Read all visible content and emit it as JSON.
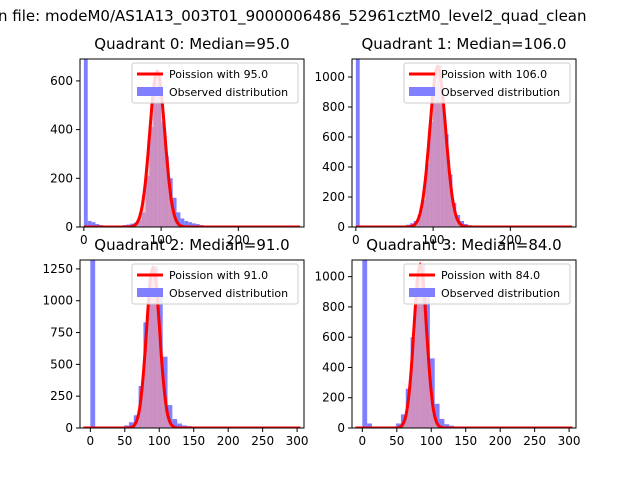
{
  "suptitle": "n file: modeM0/AS1A13_003T01_9000006486_52961cztM0_level2_quad_clean",
  "colors": {
    "hist": "#7f7fff",
    "fit": "#ff0000",
    "fit_fill": "#ff9a9a"
  },
  "chart_data": [
    {
      "type": "bar",
      "title": "Quadrant 0: Median=95.0",
      "xlim": [
        -5,
        285
      ],
      "ylim": [
        0,
        690
      ],
      "xticks": [
        0,
        100,
        200
      ],
      "yticks": [
        0,
        200,
        400,
        600
      ],
      "median": 95.0,
      "legend": [
        "Poission with 95.0",
        "Observed distribution"
      ],
      "legend_position": "top-right",
      "bars": [
        {
          "x": 0,
          "y": 690
        },
        {
          "x": 5,
          "y": 25
        },
        {
          "x": 10,
          "y": 20
        },
        {
          "x": 15,
          "y": 12
        },
        {
          "x": 20,
          "y": 8
        },
        {
          "x": 25,
          "y": 5
        },
        {
          "x": 30,
          "y": 4
        },
        {
          "x": 35,
          "y": 4
        },
        {
          "x": 40,
          "y": 5
        },
        {
          "x": 45,
          "y": 6
        },
        {
          "x": 50,
          "y": 8
        },
        {
          "x": 55,
          "y": 10
        },
        {
          "x": 60,
          "y": 14
        },
        {
          "x": 65,
          "y": 18
        },
        {
          "x": 70,
          "y": 30
        },
        {
          "x": 75,
          "y": 60
        },
        {
          "x": 80,
          "y": 210
        },
        {
          "x": 85,
          "y": 410
        },
        {
          "x": 90,
          "y": 590
        },
        {
          "x": 95,
          "y": 630
        },
        {
          "x": 100,
          "y": 430
        },
        {
          "x": 105,
          "y": 290
        },
        {
          "x": 110,
          "y": 200
        },
        {
          "x": 115,
          "y": 120
        },
        {
          "x": 120,
          "y": 60
        },
        {
          "x": 125,
          "y": 35
        },
        {
          "x": 130,
          "y": 25
        },
        {
          "x": 135,
          "y": 20
        },
        {
          "x": 140,
          "y": 15
        },
        {
          "x": 145,
          "y": 12
        },
        {
          "x": 150,
          "y": 8
        },
        {
          "x": 155,
          "y": 6
        },
        {
          "x": 160,
          "y": 4
        },
        {
          "x": 165,
          "y": 3
        },
        {
          "x": 170,
          "y": 3
        },
        {
          "x": 175,
          "y": 2
        },
        {
          "x": 180,
          "y": 2
        },
        {
          "x": 185,
          "y": 2
        },
        {
          "x": 190,
          "y": 1
        },
        {
          "x": 195,
          "y": 1
        },
        {
          "x": 200,
          "y": 1
        },
        {
          "x": 205,
          "y": 1
        }
      ],
      "fit_peak": 640
    },
    {
      "type": "bar",
      "title": "Quadrant 1: Median=106.0",
      "xlim": [
        -5,
        285
      ],
      "ylim": [
        0,
        1120
      ],
      "xticks": [
        0,
        100,
        200
      ],
      "yticks": [
        0,
        200,
        400,
        600,
        800,
        1000
      ],
      "median": 106.0,
      "legend": [
        "Poission with 106.0",
        "Observed distribution"
      ],
      "legend_position": "top-right",
      "bars": [
        {
          "x": 0,
          "y": 1120
        },
        {
          "x": 5,
          "y": 10
        },
        {
          "x": 10,
          "y": 6
        },
        {
          "x": 15,
          "y": 4
        },
        {
          "x": 20,
          "y": 3
        },
        {
          "x": 25,
          "y": 3
        },
        {
          "x": 30,
          "y": 3
        },
        {
          "x": 35,
          "y": 3
        },
        {
          "x": 40,
          "y": 4
        },
        {
          "x": 45,
          "y": 5
        },
        {
          "x": 50,
          "y": 6
        },
        {
          "x": 55,
          "y": 8
        },
        {
          "x": 60,
          "y": 10
        },
        {
          "x": 65,
          "y": 15
        },
        {
          "x": 70,
          "y": 25
        },
        {
          "x": 75,
          "y": 40
        },
        {
          "x": 80,
          "y": 80
        },
        {
          "x": 85,
          "y": 180
        },
        {
          "x": 90,
          "y": 420
        },
        {
          "x": 95,
          "y": 700
        },
        {
          "x": 100,
          "y": 940
        },
        {
          "x": 105,
          "y": 1080
        },
        {
          "x": 110,
          "y": 880
        },
        {
          "x": 115,
          "y": 620
        },
        {
          "x": 120,
          "y": 350
        },
        {
          "x": 125,
          "y": 160
        },
        {
          "x": 130,
          "y": 80
        },
        {
          "x": 135,
          "y": 40
        },
        {
          "x": 140,
          "y": 20
        },
        {
          "x": 145,
          "y": 12
        },
        {
          "x": 150,
          "y": 8
        },
        {
          "x": 155,
          "y": 6
        },
        {
          "x": 160,
          "y": 4
        },
        {
          "x": 165,
          "y": 3
        },
        {
          "x": 170,
          "y": 2
        },
        {
          "x": 175,
          "y": 2
        }
      ],
      "fit_peak": 1070
    },
    {
      "type": "bar",
      "title": "Quadrant 2: Median=91.0",
      "xlim": [
        -15,
        310
      ],
      "ylim": [
        0,
        1320
      ],
      "xticks": [
        0,
        50,
        100,
        150,
        200,
        250,
        300
      ],
      "yticks": [
        0,
        250,
        500,
        750,
        1000,
        1250
      ],
      "median": 91.0,
      "legend": [
        "Poission with 91.0",
        "Observed distribution"
      ],
      "legend_position": "top-right",
      "bars": [
        {
          "x": 0,
          "y": 1320
        },
        {
          "x": 7,
          "y": 8
        },
        {
          "x": 14,
          "y": 5
        },
        {
          "x": 21,
          "y": 4
        },
        {
          "x": 28,
          "y": 4
        },
        {
          "x": 35,
          "y": 5
        },
        {
          "x": 42,
          "y": 8
        },
        {
          "x": 49,
          "y": 20
        },
        {
          "x": 56,
          "y": 45
        },
        {
          "x": 63,
          "y": 100
        },
        {
          "x": 70,
          "y": 330
        },
        {
          "x": 77,
          "y": 830
        },
        {
          "x": 84,
          "y": 1180
        },
        {
          "x": 91,
          "y": 1270
        },
        {
          "x": 98,
          "y": 1050
        },
        {
          "x": 105,
          "y": 560
        },
        {
          "x": 112,
          "y": 180
        },
        {
          "x": 119,
          "y": 70
        },
        {
          "x": 126,
          "y": 35
        },
        {
          "x": 133,
          "y": 20
        },
        {
          "x": 140,
          "y": 15
        },
        {
          "x": 147,
          "y": 12
        },
        {
          "x": 154,
          "y": 8
        },
        {
          "x": 161,
          "y": 6
        },
        {
          "x": 168,
          "y": 4
        },
        {
          "x": 175,
          "y": 3
        },
        {
          "x": 182,
          "y": 2
        },
        {
          "x": 189,
          "y": 2
        }
      ],
      "fit_peak": 1260
    },
    {
      "type": "bar",
      "title": "Quadrant 3: Median=84.0",
      "xlim": [
        -15,
        310
      ],
      "ylim": [
        0,
        1110
      ],
      "xticks": [
        0,
        50,
        100,
        150,
        200,
        250,
        300
      ],
      "yticks": [
        0,
        200,
        400,
        600,
        800,
        1000
      ],
      "median": 84.0,
      "legend": [
        "Poission with 84.0",
        "Observed distribution"
      ],
      "legend_position": "top-right",
      "bars": [
        {
          "x": 0,
          "y": 1110
        },
        {
          "x": 7,
          "y": 30
        },
        {
          "x": 14,
          "y": 8
        },
        {
          "x": 21,
          "y": 5
        },
        {
          "x": 28,
          "y": 4
        },
        {
          "x": 35,
          "y": 5
        },
        {
          "x": 42,
          "y": 10
        },
        {
          "x": 49,
          "y": 30
        },
        {
          "x": 56,
          "y": 90
        },
        {
          "x": 63,
          "y": 260
        },
        {
          "x": 70,
          "y": 600
        },
        {
          "x": 77,
          "y": 980
        },
        {
          "x": 84,
          "y": 1080
        },
        {
          "x": 91,
          "y": 870
        },
        {
          "x": 98,
          "y": 460
        },
        {
          "x": 105,
          "y": 160
        },
        {
          "x": 112,
          "y": 60
        },
        {
          "x": 119,
          "y": 25
        },
        {
          "x": 126,
          "y": 15
        },
        {
          "x": 133,
          "y": 10
        },
        {
          "x": 140,
          "y": 8
        },
        {
          "x": 147,
          "y": 6
        },
        {
          "x": 154,
          "y": 4
        },
        {
          "x": 161,
          "y": 3
        },
        {
          "x": 168,
          "y": 2
        },
        {
          "x": 175,
          "y": 2
        }
      ],
      "fit_peak": 1080
    }
  ]
}
